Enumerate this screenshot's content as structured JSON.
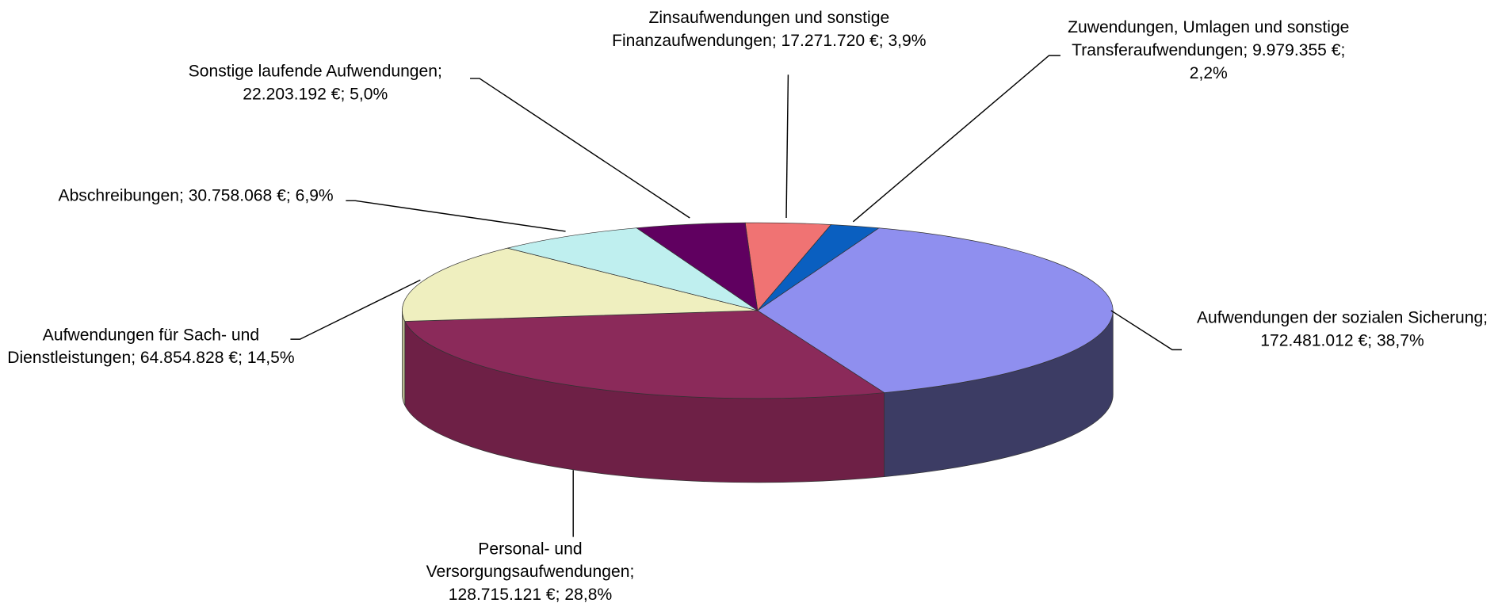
{
  "chart_data": {
    "type": "pie3d",
    "label_separator": "; ",
    "categories": [
      "Zinsaufwendungen und sonstige Finanzaufwendungen",
      "Zuwendungen, Umlagen und sonstige Transferaufwendungen",
      "Aufwendungen der sozialen Sicherung",
      "Personal- und Versorgungsaufwendungen",
      "Aufwendungen für Sach- und Dienstleistungen",
      "Abschreibungen",
      "Sonstige laufende Aufwendungen"
    ],
    "values": [
      17271720,
      9979355,
      172481012,
      128715121,
      64854828,
      30758068,
      22203192
    ],
    "value_labels": [
      "17.271.720 €",
      "9.979.355 €",
      "172.481.012 €",
      "128.715.121 €",
      "64.854.828 €",
      "30.758.068 €",
      "22.203.192 €"
    ],
    "percentages": [
      3.9,
      2.2,
      38.7,
      28.8,
      14.5,
      6.9,
      5.0
    ],
    "percentage_labels": [
      "3,9%",
      "2,2%",
      "38,7%",
      "28,8%",
      "14,5%",
      "6,9%",
      "5,0%"
    ],
    "colors": [
      "#f07373",
      "#0a5fc0",
      "#8f8fef",
      "#8b2a5a",
      "#efefbf",
      "#bfefef",
      "#600060"
    ],
    "side_colors": [
      "#b85050",
      "#074690",
      "#3c3c64",
      "#6e2046",
      "#b8b890",
      "#90b8b8",
      "#400040"
    ]
  }
}
